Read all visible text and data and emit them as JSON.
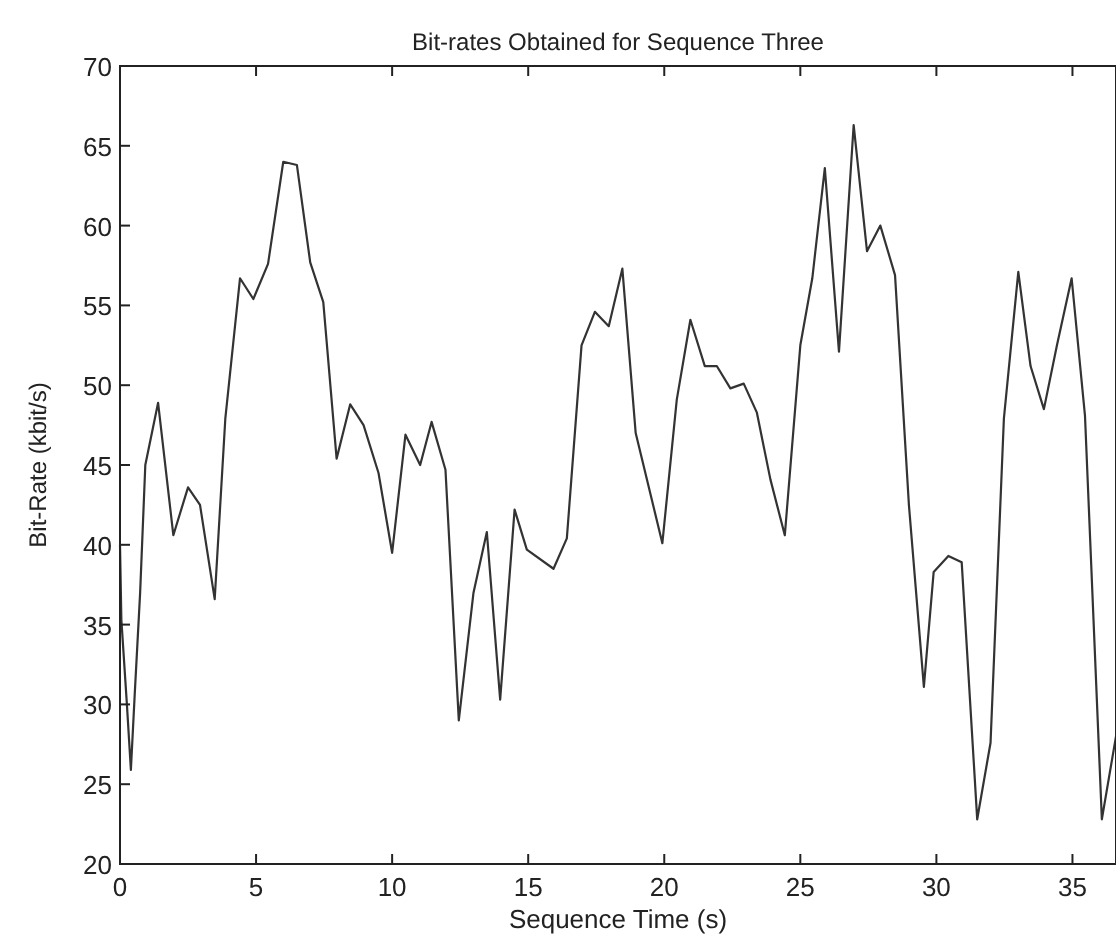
{
  "chart_data": {
    "type": "line",
    "title": "Bit-rates Obtained for Sequence Three",
    "xlabel": "Sequence Time (s)",
    "ylabel": "Bit-Rate (kbit/s)",
    "xlim": [
      0,
      36.6
    ],
    "ylim": [
      20,
      70
    ],
    "xticks": [
      0,
      5,
      10,
      15,
      20,
      25,
      30,
      35
    ],
    "yticks": [
      20,
      25,
      30,
      35,
      40,
      45,
      50,
      55,
      60,
      65,
      70
    ],
    "grid": false,
    "line_style": "solid",
    "series": [
      {
        "color": "#333333",
        "x": [
          0,
          0.05,
          0.25,
          0.4,
          0.54,
          0.74,
          0.93,
          1.4,
          1.96,
          2.5,
          2.94,
          3.48,
          3.87,
          4.41,
          4.9,
          5.44,
          6.0,
          6.5,
          6.99,
          7.47,
          7.96,
          8.46,
          8.95,
          9.5,
          10.0,
          10.49,
          11.03,
          11.45,
          11.96,
          12.45,
          12.99,
          13.48,
          13.97,
          14.5,
          14.95,
          15.93,
          16.42,
          16.96,
          17.45,
          17.96,
          18.46,
          18.95,
          19.93,
          20.46,
          20.96,
          21.49,
          21.93,
          22.43,
          22.92,
          23.4,
          23.9,
          24.43,
          25.0,
          25.44,
          25.9,
          26.42,
          26.96,
          27.45,
          27.94,
          28.48,
          28.99,
          29.54,
          29.9,
          30.44,
          30.93,
          31.5,
          31.99,
          32.48,
          33.01,
          33.46,
          33.95,
          34.43,
          34.97,
          35.46,
          36.08,
          36.6
        ],
        "values": [
          40.0,
          35.3,
          30.1,
          25.9,
          30.6,
          37,
          45,
          48.9,
          40.6,
          43.6,
          42.5,
          36.6,
          47.9,
          56.7,
          55.4,
          57.6,
          64.0,
          63.8,
          57.7,
          55.2,
          45.4,
          48.8,
          47.5,
          44.5,
          39.5,
          46.9,
          45,
          47.7,
          44.7,
          29.0,
          37.0,
          40.8,
          30.3,
          42.2,
          39.7,
          38.5,
          40.4,
          52.5,
          54.6,
          53.7,
          57.3,
          47.0,
          40.1,
          49.1,
          54.1,
          51.2,
          51.2,
          49.8,
          50.1,
          48.3,
          44.1,
          40.6,
          52.5,
          56.7,
          63.6,
          52.1,
          66.3,
          58.4,
          60.0,
          56.9,
          42.5,
          31.1,
          38.3,
          39.3,
          38.9,
          22.8,
          27.6,
          47.9,
          57.1,
          51.2,
          48.5,
          52.5,
          56.7,
          48.1,
          22.8,
          28.0
        ]
      }
    ]
  }
}
